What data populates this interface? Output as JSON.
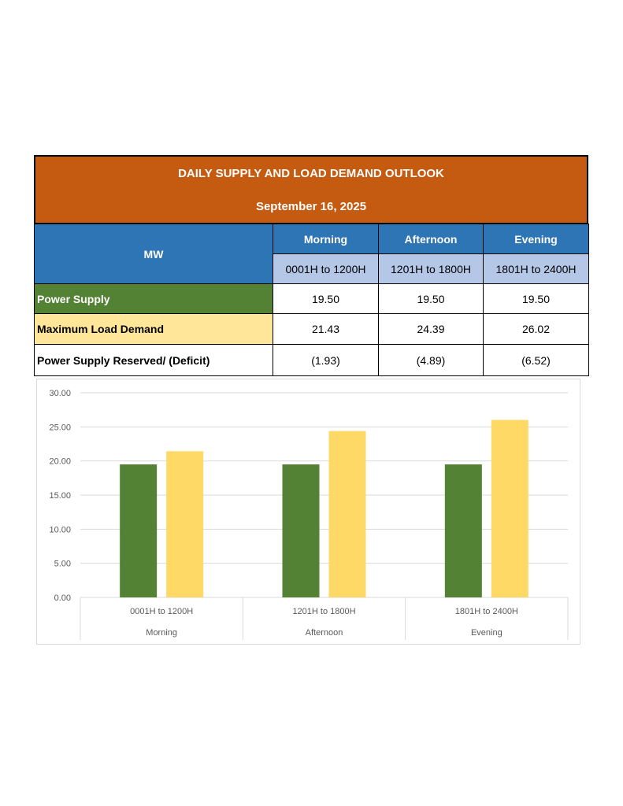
{
  "table": {
    "title": "DAILY SUPPLY AND LOAD DEMAND OUTLOOK",
    "date": "September 16, 2025",
    "unit_label": "MW",
    "periods": [
      {
        "name": "Morning",
        "range": "0001H to 1200H"
      },
      {
        "name": "Afternoon",
        "range": "1201H to 1800H"
      },
      {
        "name": "Evening",
        "range": "1801H to 2400H"
      }
    ],
    "rows": [
      {
        "label": "Power Supply",
        "values": [
          "19.50",
          "19.50",
          "19.50"
        ]
      },
      {
        "label": "Maximum Load Demand",
        "values": [
          "21.43",
          "24.39",
          "26.02"
        ]
      },
      {
        "label": "Power Supply Reserved/ (Deficit)",
        "values": [
          "(1.93)",
          "(4.89)",
          "(6.52)"
        ]
      }
    ]
  },
  "colors": {
    "header": "#c55a11",
    "blue": "#2e75b6",
    "light_blue": "#b4c7e7",
    "supply": "#548235",
    "demand": "#ffd966",
    "demand_label_bg": "#ffe699"
  },
  "chart_data": {
    "type": "bar",
    "categories": [
      {
        "range": "0001H to 1200H",
        "period": "Morning"
      },
      {
        "range": "1201H to 1800H",
        "period": "Afternoon"
      },
      {
        "range": "1801H to 2400H",
        "period": "Evening"
      }
    ],
    "series": [
      {
        "values": [
          19.5,
          19.5,
          19.5
        ],
        "color": "#548235"
      },
      {
        "values": [
          21.43,
          24.39,
          26.02
        ],
        "color": "#ffd966"
      }
    ],
    "ylim": [
      0,
      30
    ],
    "yticks": [
      "0.00",
      "5.00",
      "10.00",
      "15.00",
      "20.00",
      "25.00",
      "30.00"
    ],
    "grid": true,
    "legend": "none"
  }
}
